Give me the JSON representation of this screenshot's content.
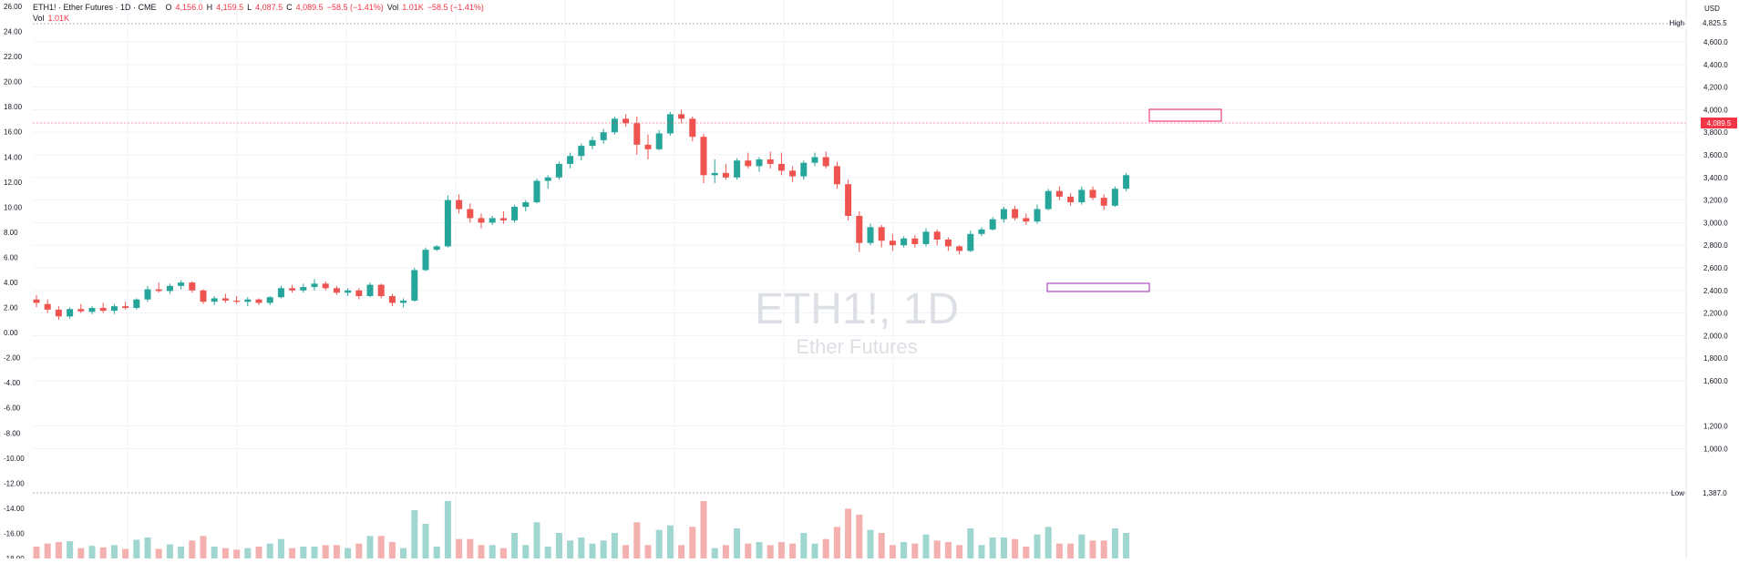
{
  "legend": {
    "symbol_title": "ETH1! · Ether Futures · 1D · CME",
    "open_label": "O",
    "open_value": "4,156.0",
    "high_label": "H",
    "high_value": "4,159.5",
    "low_label": "L",
    "low_value": "4,087.5",
    "close_label": "C",
    "close_value": "4,089.5",
    "change_value": "−58.5 (−1.41%)",
    "vol_label": "Vol",
    "vol_value": "1.01K",
    "change_value2": "−58.5 (−1.41%)",
    "volume_row_label": "Vol",
    "volume_row_value": "1.01K"
  },
  "watermark": {
    "symbol": "ETH1!, 1D",
    "name": "Ether Futures"
  },
  "price_axis": {
    "currency": "USD",
    "ticks": [
      "4,600.0",
      "4,400.0",
      "4,200.0",
      "4,000.0",
      "3,800.0",
      "3,600.0",
      "3,400.0",
      "3,200.0",
      "3,000.0",
      "2,800.0",
      "2,600.0",
      "2,400.0",
      "2,200.0",
      "2,000.0",
      "1,800.0",
      "1,600.0",
      "1,200.0",
      "1,000.0"
    ],
    "high_label": "High",
    "high_value": "4,825.5",
    "low_label": "Low",
    "low_value": "1,387.0",
    "last_value": "4,089.5"
  },
  "left_axis": {
    "ticks": [
      "26.00",
      "24.00",
      "22.00",
      "20.00",
      "18.00",
      "16.00",
      "14.00",
      "12.00",
      "10.00",
      "8.00",
      "6.00",
      "4.00",
      "2.00",
      "0.00",
      "-2.00",
      "-4.00",
      "-6.00",
      "-8.00",
      "-10.00",
      "-12.00",
      "-14.00",
      "-16.00",
      "-18.00"
    ]
  },
  "colors": {
    "up": "#26a69a",
    "down": "#ef5350",
    "up_vol": "#9fd6cf",
    "down_vol": "#f4b0ae",
    "box_pink": "#e91e63",
    "box_purple": "#9c27b0",
    "last_badge": "#f23645"
  },
  "chart_data": {
    "type": "candlestick",
    "y_axis_right": {
      "min": 1000,
      "max": 4825.5,
      "unit": "USD"
    },
    "y_axis_left": {
      "min": -18,
      "max": 26
    },
    "highest": 4825.5,
    "lowest": 1387.0,
    "last_close": 4089.5,
    "candles": [
      {
        "o": 2320,
        "h": 2360,
        "l": 2250,
        "c": 2290
      },
      {
        "o": 2280,
        "h": 2320,
        "l": 2200,
        "c": 2230
      },
      {
        "o": 2230,
        "h": 2260,
        "l": 2140,
        "c": 2170
      },
      {
        "o": 2170,
        "h": 2250,
        "l": 2150,
        "c": 2235
      },
      {
        "o": 2235,
        "h": 2280,
        "l": 2200,
        "c": 2215
      },
      {
        "o": 2210,
        "h": 2260,
        "l": 2190,
        "c": 2245
      },
      {
        "o": 2245,
        "h": 2290,
        "l": 2200,
        "c": 2220
      },
      {
        "o": 2220,
        "h": 2280,
        "l": 2190,
        "c": 2260
      },
      {
        "o": 2260,
        "h": 2300,
        "l": 2230,
        "c": 2245
      },
      {
        "o": 2245,
        "h": 2330,
        "l": 2230,
        "c": 2320
      },
      {
        "o": 2320,
        "h": 2440,
        "l": 2300,
        "c": 2410
      },
      {
        "o": 2410,
        "h": 2470,
        "l": 2380,
        "c": 2395
      },
      {
        "o": 2395,
        "h": 2460,
        "l": 2370,
        "c": 2440
      },
      {
        "o": 2440,
        "h": 2490,
        "l": 2410,
        "c": 2470
      },
      {
        "o": 2470,
        "h": 2480,
        "l": 2380,
        "c": 2400
      },
      {
        "o": 2400,
        "h": 2410,
        "l": 2280,
        "c": 2300
      },
      {
        "o": 2300,
        "h": 2350,
        "l": 2270,
        "c": 2330
      },
      {
        "o": 2330,
        "h": 2370,
        "l": 2290,
        "c": 2310
      },
      {
        "o": 2310,
        "h": 2350,
        "l": 2280,
        "c": 2300
      },
      {
        "o": 2300,
        "h": 2340,
        "l": 2260,
        "c": 2320
      },
      {
        "o": 2320,
        "h": 2330,
        "l": 2270,
        "c": 2290
      },
      {
        "o": 2290,
        "h": 2350,
        "l": 2270,
        "c": 2340
      },
      {
        "o": 2340,
        "h": 2440,
        "l": 2330,
        "c": 2420
      },
      {
        "o": 2420,
        "h": 2450,
        "l": 2380,
        "c": 2400
      },
      {
        "o": 2400,
        "h": 2460,
        "l": 2380,
        "c": 2430
      },
      {
        "o": 2430,
        "h": 2500,
        "l": 2400,
        "c": 2460
      },
      {
        "o": 2460,
        "h": 2480,
        "l": 2400,
        "c": 2420
      },
      {
        "o": 2420,
        "h": 2440,
        "l": 2360,
        "c": 2380
      },
      {
        "o": 2380,
        "h": 2420,
        "l": 2350,
        "c": 2400
      },
      {
        "o": 2400,
        "h": 2420,
        "l": 2320,
        "c": 2350
      },
      {
        "o": 2350,
        "h": 2470,
        "l": 2340,
        "c": 2450
      },
      {
        "o": 2450,
        "h": 2460,
        "l": 2330,
        "c": 2350
      },
      {
        "o": 2350,
        "h": 2370,
        "l": 2260,
        "c": 2290
      },
      {
        "o": 2290,
        "h": 2330,
        "l": 2250,
        "c": 2310
      },
      {
        "o": 2310,
        "h": 2600,
        "l": 2300,
        "c": 2580
      },
      {
        "o": 2580,
        "h": 2780,
        "l": 2570,
        "c": 2760
      },
      {
        "o": 2760,
        "h": 2800,
        "l": 2750,
        "c": 2790
      },
      {
        "o": 2790,
        "h": 3240,
        "l": 2780,
        "c": 3200
      },
      {
        "o": 3200,
        "h": 3250,
        "l": 3080,
        "c": 3120
      },
      {
        "o": 3120,
        "h": 3170,
        "l": 3000,
        "c": 3040
      },
      {
        "o": 3040,
        "h": 3080,
        "l": 2950,
        "c": 3000
      },
      {
        "o": 3000,
        "h": 3060,
        "l": 2980,
        "c": 3040
      },
      {
        "o": 3040,
        "h": 3100,
        "l": 2990,
        "c": 3020
      },
      {
        "o": 3020,
        "h": 3160,
        "l": 3000,
        "c": 3140
      },
      {
        "o": 3140,
        "h": 3200,
        "l": 3100,
        "c": 3180
      },
      {
        "o": 3180,
        "h": 3390,
        "l": 3170,
        "c": 3370
      },
      {
        "o": 3370,
        "h": 3420,
        "l": 3300,
        "c": 3400
      },
      {
        "o": 3400,
        "h": 3540,
        "l": 3380,
        "c": 3520
      },
      {
        "o": 3520,
        "h": 3620,
        "l": 3480,
        "c": 3590
      },
      {
        "o": 3590,
        "h": 3700,
        "l": 3550,
        "c": 3680
      },
      {
        "o": 3680,
        "h": 3760,
        "l": 3650,
        "c": 3730
      },
      {
        "o": 3730,
        "h": 3830,
        "l": 3700,
        "c": 3800
      },
      {
        "o": 3800,
        "h": 3940,
        "l": 3780,
        "c": 3920
      },
      {
        "o": 3920,
        "h": 3960,
        "l": 3850,
        "c": 3880
      },
      {
        "o": 3880,
        "h": 3940,
        "l": 3600,
        "c": 3690
      },
      {
        "o": 3690,
        "h": 3780,
        "l": 3560,
        "c": 3650
      },
      {
        "o": 3650,
        "h": 3820,
        "l": 3640,
        "c": 3790
      },
      {
        "o": 3790,
        "h": 3980,
        "l": 3770,
        "c": 3960
      },
      {
        "o": 3960,
        "h": 4000,
        "l": 3880,
        "c": 3920
      },
      {
        "o": 3920,
        "h": 3940,
        "l": 3720,
        "c": 3760
      },
      {
        "o": 3760,
        "h": 3790,
        "l": 3350,
        "c": 3420
      },
      {
        "o": 3420,
        "h": 3560,
        "l": 3350,
        "c": 3440
      },
      {
        "o": 3440,
        "h": 3520,
        "l": 3380,
        "c": 3400
      },
      {
        "o": 3400,
        "h": 3570,
        "l": 3380,
        "c": 3550
      },
      {
        "o": 3550,
        "h": 3620,
        "l": 3480,
        "c": 3500
      },
      {
        "o": 3500,
        "h": 3580,
        "l": 3450,
        "c": 3560
      },
      {
        "o": 3560,
        "h": 3630,
        "l": 3480,
        "c": 3520
      },
      {
        "o": 3520,
        "h": 3620,
        "l": 3420,
        "c": 3460
      },
      {
        "o": 3460,
        "h": 3500,
        "l": 3360,
        "c": 3410
      },
      {
        "o": 3410,
        "h": 3550,
        "l": 3380,
        "c": 3530
      },
      {
        "o": 3530,
        "h": 3620,
        "l": 3500,
        "c": 3580
      },
      {
        "o": 3580,
        "h": 3630,
        "l": 3480,
        "c": 3500
      },
      {
        "o": 3500,
        "h": 3540,
        "l": 3300,
        "c": 3340
      },
      {
        "o": 3340,
        "h": 3380,
        "l": 3020,
        "c": 3060
      },
      {
        "o": 3060,
        "h": 3100,
        "l": 2740,
        "c": 2820
      },
      {
        "o": 2820,
        "h": 2990,
        "l": 2800,
        "c": 2960
      },
      {
        "o": 2960,
        "h": 2980,
        "l": 2780,
        "c": 2840
      },
      {
        "o": 2840,
        "h": 2900,
        "l": 2750,
        "c": 2800
      },
      {
        "o": 2800,
        "h": 2880,
        "l": 2780,
        "c": 2860
      },
      {
        "o": 2860,
        "h": 2890,
        "l": 2780,
        "c": 2810
      },
      {
        "o": 2810,
        "h": 2950,
        "l": 2790,
        "c": 2920
      },
      {
        "o": 2920,
        "h": 2940,
        "l": 2800,
        "c": 2850
      },
      {
        "o": 2850,
        "h": 2870,
        "l": 2750,
        "c": 2790
      },
      {
        "o": 2790,
        "h": 2800,
        "l": 2720,
        "c": 2750
      },
      {
        "o": 2750,
        "h": 2930,
        "l": 2740,
        "c": 2900
      },
      {
        "o": 2900,
        "h": 2960,
        "l": 2880,
        "c": 2940
      },
      {
        "o": 2940,
        "h": 3050,
        "l": 2930,
        "c": 3030
      },
      {
        "o": 3030,
        "h": 3140,
        "l": 3000,
        "c": 3120
      },
      {
        "o": 3120,
        "h": 3150,
        "l": 3020,
        "c": 3040
      },
      {
        "o": 3040,
        "h": 3080,
        "l": 2980,
        "c": 3010
      },
      {
        "o": 3010,
        "h": 3160,
        "l": 2990,
        "c": 3120
      },
      {
        "o": 3120,
        "h": 3300,
        "l": 3110,
        "c": 3280
      },
      {
        "o": 3280,
        "h": 3320,
        "l": 3200,
        "c": 3230
      },
      {
        "o": 3230,
        "h": 3260,
        "l": 3150,
        "c": 3180
      },
      {
        "o": 3180,
        "h": 3320,
        "l": 3160,
        "c": 3290
      },
      {
        "o": 3290,
        "h": 3320,
        "l": 3200,
        "c": 3220
      },
      {
        "o": 3220,
        "h": 3250,
        "l": 3110,
        "c": 3150
      },
      {
        "o": 3150,
        "h": 3320,
        "l": 3140,
        "c": 3300
      },
      {
        "o": 3300,
        "h": 3440,
        "l": 3280,
        "c": 3420
      }
    ]
  }
}
